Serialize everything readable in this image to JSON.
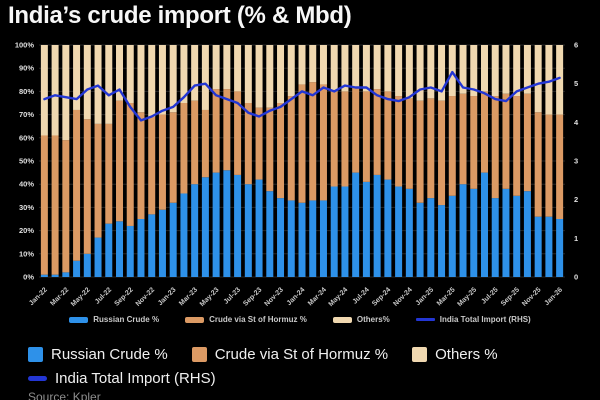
{
  "title": "India’s crude import (% & Mbd)",
  "source": "Source: Kpler",
  "colors": {
    "background": "#000000",
    "russian": "#2e91e9",
    "hormuz": "#dc9a64",
    "others": "#f0d8b0",
    "line": "#2336d4",
    "axis_text": "#e0e0e0",
    "x_tick_text": "#c9c9c9",
    "grid_h": "#262626",
    "grid_v": "#191919"
  },
  "legend_small": {
    "items": [
      {
        "label": "Russian Crude %",
        "swatch": "bar",
        "color_key": "russian"
      },
      {
        "label": "Crude via St of Hormuz %",
        "swatch": "bar",
        "color_key": "hormuz"
      },
      {
        "label": "Others%",
        "swatch": "bar",
        "color_key": "others"
      },
      {
        "label": "India Total Import (RHS)",
        "swatch": "line",
        "color_key": "line"
      }
    ]
  },
  "legend_large": {
    "items": [
      {
        "label": "Russian Crude %",
        "swatch": "bar",
        "color_key": "russian"
      },
      {
        "label": "Crude via St of Hormuz %",
        "swatch": "bar",
        "color_key": "hormuz"
      },
      {
        "label": "Others %",
        "swatch": "bar",
        "color_key": "others"
      },
      {
        "label": "India Total Import (RHS)",
        "swatch": "line",
        "color_key": "line"
      }
    ]
  },
  "chart_data": {
    "type": "bar",
    "subtype": "stacked-percent-bars-with-line",
    "title": "India’s crude import (% & Mbd)",
    "legend_position": "bottom",
    "grid": true,
    "x_tick_every": 2,
    "categories": [
      "Jan-22",
      "Feb-22",
      "Mar-22",
      "Apr-22",
      "May-22",
      "Jun-22",
      "Jul-22",
      "Aug-22",
      "Sep-22",
      "Oct-22",
      "Nov-22",
      "Dec-22",
      "Jan-23",
      "Feb-23",
      "Mar-23",
      "Apr-23",
      "May-23",
      "Jun-23",
      "Jul-23",
      "Aug-23",
      "Sep-23",
      "Oct-23",
      "Nov-23",
      "Dec-23",
      "Jan-24",
      "Feb-24",
      "Mar-24",
      "Apr-24",
      "May-24",
      "Jun-24",
      "Jul-24",
      "Aug-24",
      "Sep-24",
      "Oct-24",
      "Nov-24",
      "Dec-24",
      "Jan-25",
      "Feb-25",
      "Mar-25",
      "Apr-25",
      "May-25",
      "Jun-25",
      "Jul-25",
      "Aug-25",
      "Sep-25",
      "Oct-25",
      "Nov-25",
      "Dec-25",
      "Jan-26"
    ],
    "left_axis": {
      "min": 0,
      "max": 100,
      "tick_step": 10,
      "format": "percent",
      "ticks": [
        "0%",
        "10%",
        "20%",
        "30%",
        "40%",
        "50%",
        "60%",
        "70%",
        "80%",
        "90%",
        "100%"
      ]
    },
    "right_axis": {
      "min": 0,
      "max": 6,
      "tick_step": 1,
      "unit": "Mbd",
      "ticks": [
        "0",
        "1",
        "2",
        "3",
        "4",
        "5",
        "6"
      ]
    },
    "series": [
      {
        "name": "Russian Crude %",
        "type": "bar",
        "axis": "left",
        "color": "#2e91e9",
        "values": [
          1,
          1,
          2,
          7,
          10,
          17,
          23,
          24,
          22,
          25,
          27,
          29,
          32,
          36,
          40,
          43,
          45,
          46,
          44,
          40,
          42,
          37,
          34,
          33,
          32,
          33,
          33,
          39,
          39,
          45,
          41,
          44,
          42,
          39,
          38,
          32,
          34,
          31,
          35,
          40,
          38,
          45,
          34,
          38,
          35,
          37,
          26,
          26,
          25
        ]
      },
      {
        "name": "Crude via St of Hormuz %",
        "type": "bar",
        "axis": "left",
        "color": "#dc9a64",
        "values": [
          60,
          60,
          57,
          65,
          58,
          49,
          43,
          52,
          53,
          46,
          42,
          41,
          39,
          39,
          36,
          29,
          36,
          35,
          36,
          35,
          31,
          36,
          41,
          45,
          51,
          51,
          50,
          41,
          41,
          37,
          39,
          37,
          38,
          39,
          39,
          44,
          43,
          45,
          43,
          39,
          40,
          35,
          44,
          41,
          43,
          42,
          45,
          44,
          45
        ]
      },
      {
        "name": "Others %",
        "type": "bar",
        "axis": "left",
        "color": "#f0d8b0",
        "values": [
          39,
          39,
          41,
          28,
          32,
          34,
          34,
          24,
          25,
          29,
          31,
          30,
          29,
          25,
          24,
          28,
          19,
          19,
          20,
          25,
          27,
          27,
          25,
          22,
          17,
          16,
          17,
          20,
          20,
          18,
          20,
          19,
          20,
          22,
          23,
          24,
          23,
          24,
          22,
          21,
          22,
          20,
          22,
          21,
          22,
          21,
          29,
          30,
          30
        ]
      },
      {
        "name": "India Total Import (RHS)",
        "type": "line",
        "axis": "right",
        "color": "#2336d4",
        "values": [
          4.6,
          4.7,
          4.65,
          4.6,
          4.85,
          4.95,
          4.7,
          4.85,
          4.4,
          4.05,
          4.15,
          4.3,
          4.4,
          4.65,
          4.95,
          5.0,
          4.7,
          4.6,
          4.5,
          4.25,
          4.15,
          4.3,
          4.4,
          4.6,
          4.8,
          4.7,
          4.9,
          4.8,
          4.95,
          4.9,
          4.9,
          4.7,
          4.6,
          4.55,
          4.65,
          4.85,
          4.9,
          4.8,
          5.3,
          4.9,
          4.85,
          4.75,
          4.6,
          4.55,
          4.8,
          4.9,
          5.0,
          5.05,
          5.15
        ]
      }
    ]
  }
}
